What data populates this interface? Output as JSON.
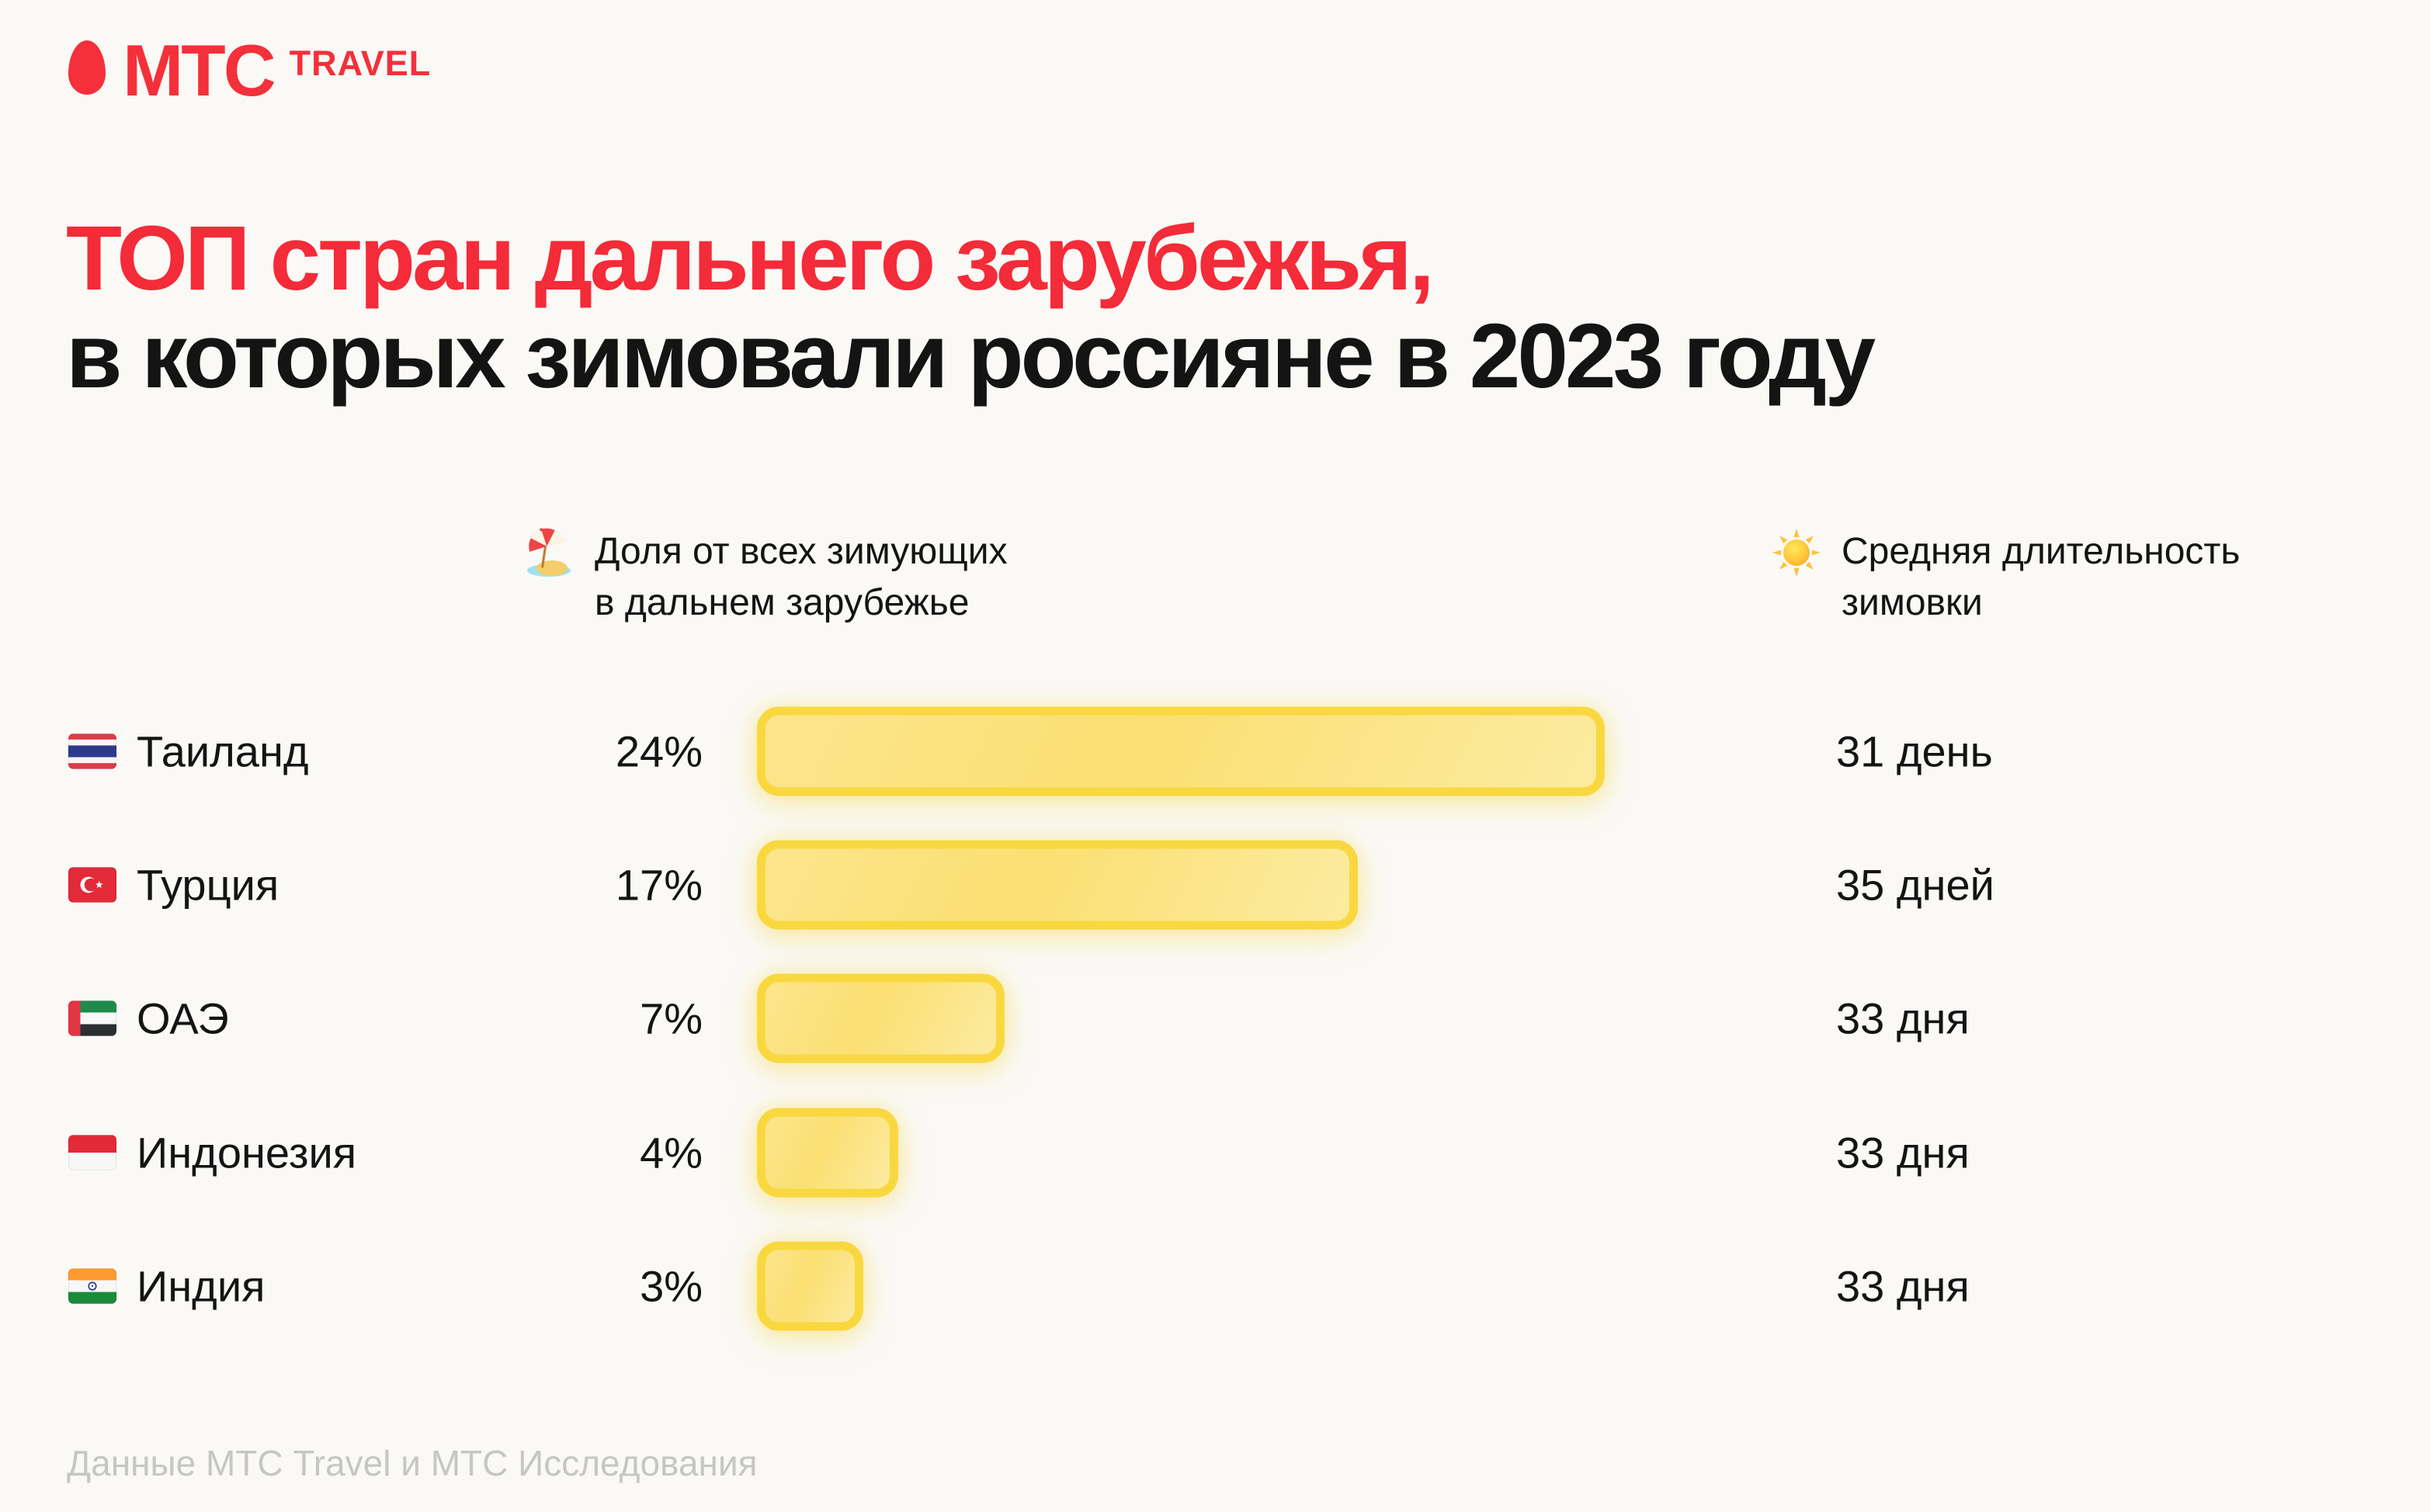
{
  "colors": {
    "accent_red": "#F4303A",
    "text_dark": "#141414",
    "background": "#FAF9F6",
    "bar_fill": "#FBE07C",
    "bar_border": "#F9D83F",
    "footer_gray": "#C6C6C3"
  },
  "logo": {
    "brand": "МТС",
    "product": "TRAVEL"
  },
  "title": {
    "line1": "ТОП стран дальнего зарубежья,",
    "line2": "в которых зимовали россияне в 2023 году"
  },
  "legend": {
    "share": {
      "icon": "beach-umbrella-icon",
      "label_line1": "Доля от всех зимующих",
      "label_line2": "в дальнем зарубежье"
    },
    "duration": {
      "icon": "sun-icon",
      "label_line1": "Средняя длительность",
      "label_line2": "зимовки"
    }
  },
  "chart_data": {
    "type": "bar",
    "orientation": "horizontal",
    "title": "ТОП стран дальнего зарубежья, в которых зимовали россияне в 2023 году",
    "categories": [
      "Таиланд",
      "Турция",
      "ОАЭ",
      "Индонезия",
      "Индия"
    ],
    "series": [
      {
        "name": "Доля от всех зимующих в дальнем зарубежье",
        "unit": "%",
        "values": [
          24,
          17,
          7,
          4,
          3
        ]
      },
      {
        "name": "Средняя длительность зимовки",
        "unit": "дни",
        "values": [
          31,
          35,
          33,
          33,
          33
        ]
      }
    ],
    "value_labels_share": [
      "24%",
      "17%",
      "7%",
      "4%",
      "3%"
    ],
    "value_labels_duration": [
      "31 день",
      "35 дней",
      "33 дня",
      "33 дня",
      "33 дня"
    ],
    "xlim": [
      0,
      24
    ],
    "grid": false,
    "legend_position": "top",
    "bar_color": "#FBE07C",
    "bar_border_color": "#F9D83F"
  },
  "rows": [
    {
      "flag": "thailand-flag-icon",
      "country": "Таиланд",
      "share": "24%",
      "duration": "31 день"
    },
    {
      "flag": "turkey-flag-icon",
      "country": "Турция",
      "share": "17%",
      "duration": "35 дней"
    },
    {
      "flag": "uae-flag-icon",
      "country": "ОАЭ",
      "share": "7%",
      "duration": "33 дня"
    },
    {
      "flag": "indonesia-flag-icon",
      "country": "Индонезия",
      "share": "4%",
      "duration": "33 дня"
    },
    {
      "flag": "india-flag-icon",
      "country": "Индия",
      "share": "3%",
      "duration": "33 дня"
    }
  ],
  "footer": {
    "source": "Данные МТС Travel и МТС Исследования"
  }
}
